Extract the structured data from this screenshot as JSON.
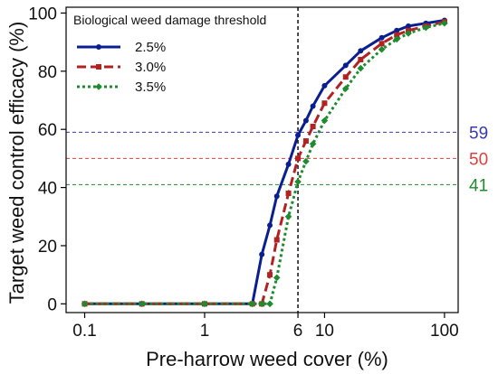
{
  "chart_data": {
    "type": "line",
    "title": "",
    "xlabel": "Pre-harrow weed cover (%)",
    "ylabel": "Target weed control efficacy (%)",
    "x_scale": "log",
    "xlim": [
      0.07,
      130
    ],
    "ylim": [
      -3,
      102
    ],
    "x_ticks": [
      0.1,
      1,
      6,
      10,
      100
    ],
    "x_tick_labels": [
      "0.1",
      "1",
      "6",
      "10",
      "100"
    ],
    "y_ticks": [
      0,
      20,
      40,
      60,
      80,
      100
    ],
    "y_tick_labels": [
      "0",
      "20",
      "40",
      "60",
      "80",
      "100"
    ],
    "grid": false,
    "legend": {
      "title": "Biological weed damage threshold",
      "placement": "top-left"
    },
    "series": [
      {
        "name": "2.5%",
        "color": "#0a1f8f",
        "style": "solid",
        "marker": "circle",
        "x": [
          0.1,
          0.3,
          1,
          2.5,
          3.0,
          3.5,
          4.0,
          5.0,
          6.0,
          7.0,
          8.0,
          10,
          15,
          20,
          30,
          40,
          50,
          70,
          100
        ],
        "y": [
          0,
          0,
          0,
          0,
          17,
          27,
          37,
          48,
          58,
          63,
          68,
          75,
          82,
          87,
          91.5,
          94,
          95.5,
          96.5,
          97.5
        ]
      },
      {
        "name": "3.0%",
        "color": "#b22222",
        "style": "dashed",
        "marker": "square",
        "x": [
          0.1,
          0.3,
          1,
          2.5,
          3.0,
          3.5,
          4.0,
          5.0,
          6.0,
          7.0,
          8.0,
          10,
          15,
          20,
          30,
          40,
          50,
          70,
          100
        ],
        "y": [
          0,
          0,
          0,
          0,
          0,
          10,
          22,
          38,
          50,
          56,
          61,
          69,
          78,
          84,
          89.5,
          92.5,
          94,
          95.5,
          97
        ]
      },
      {
        "name": "3.5%",
        "color": "#1e8c2e",
        "style": "dotted",
        "marker": "diamond",
        "x": [
          0.1,
          0.3,
          1,
          2.5,
          3.0,
          3.5,
          4.0,
          5.0,
          6.0,
          7.0,
          8.0,
          10,
          15,
          20,
          30,
          40,
          50,
          70,
          100
        ],
        "y": [
          0,
          0,
          0,
          0,
          0,
          0,
          9,
          30,
          42,
          49,
          55,
          63,
          74,
          81,
          87.5,
          91,
          93,
          95,
          96.5
        ]
      }
    ],
    "reference_lines": [
      {
        "orientation": "horizontal",
        "y": 59,
        "label": "59",
        "color": "#3a3ab0",
        "style": "dashed"
      },
      {
        "orientation": "horizontal",
        "y": 50,
        "label": "50",
        "color": "#e04040",
        "style": "dashed"
      },
      {
        "orientation": "horizontal",
        "y": 41,
        "label": "41",
        "color": "#1e8c2e",
        "style": "dashed"
      },
      {
        "orientation": "vertical",
        "x": 6,
        "color": "#000000",
        "style": "dashed"
      }
    ]
  }
}
